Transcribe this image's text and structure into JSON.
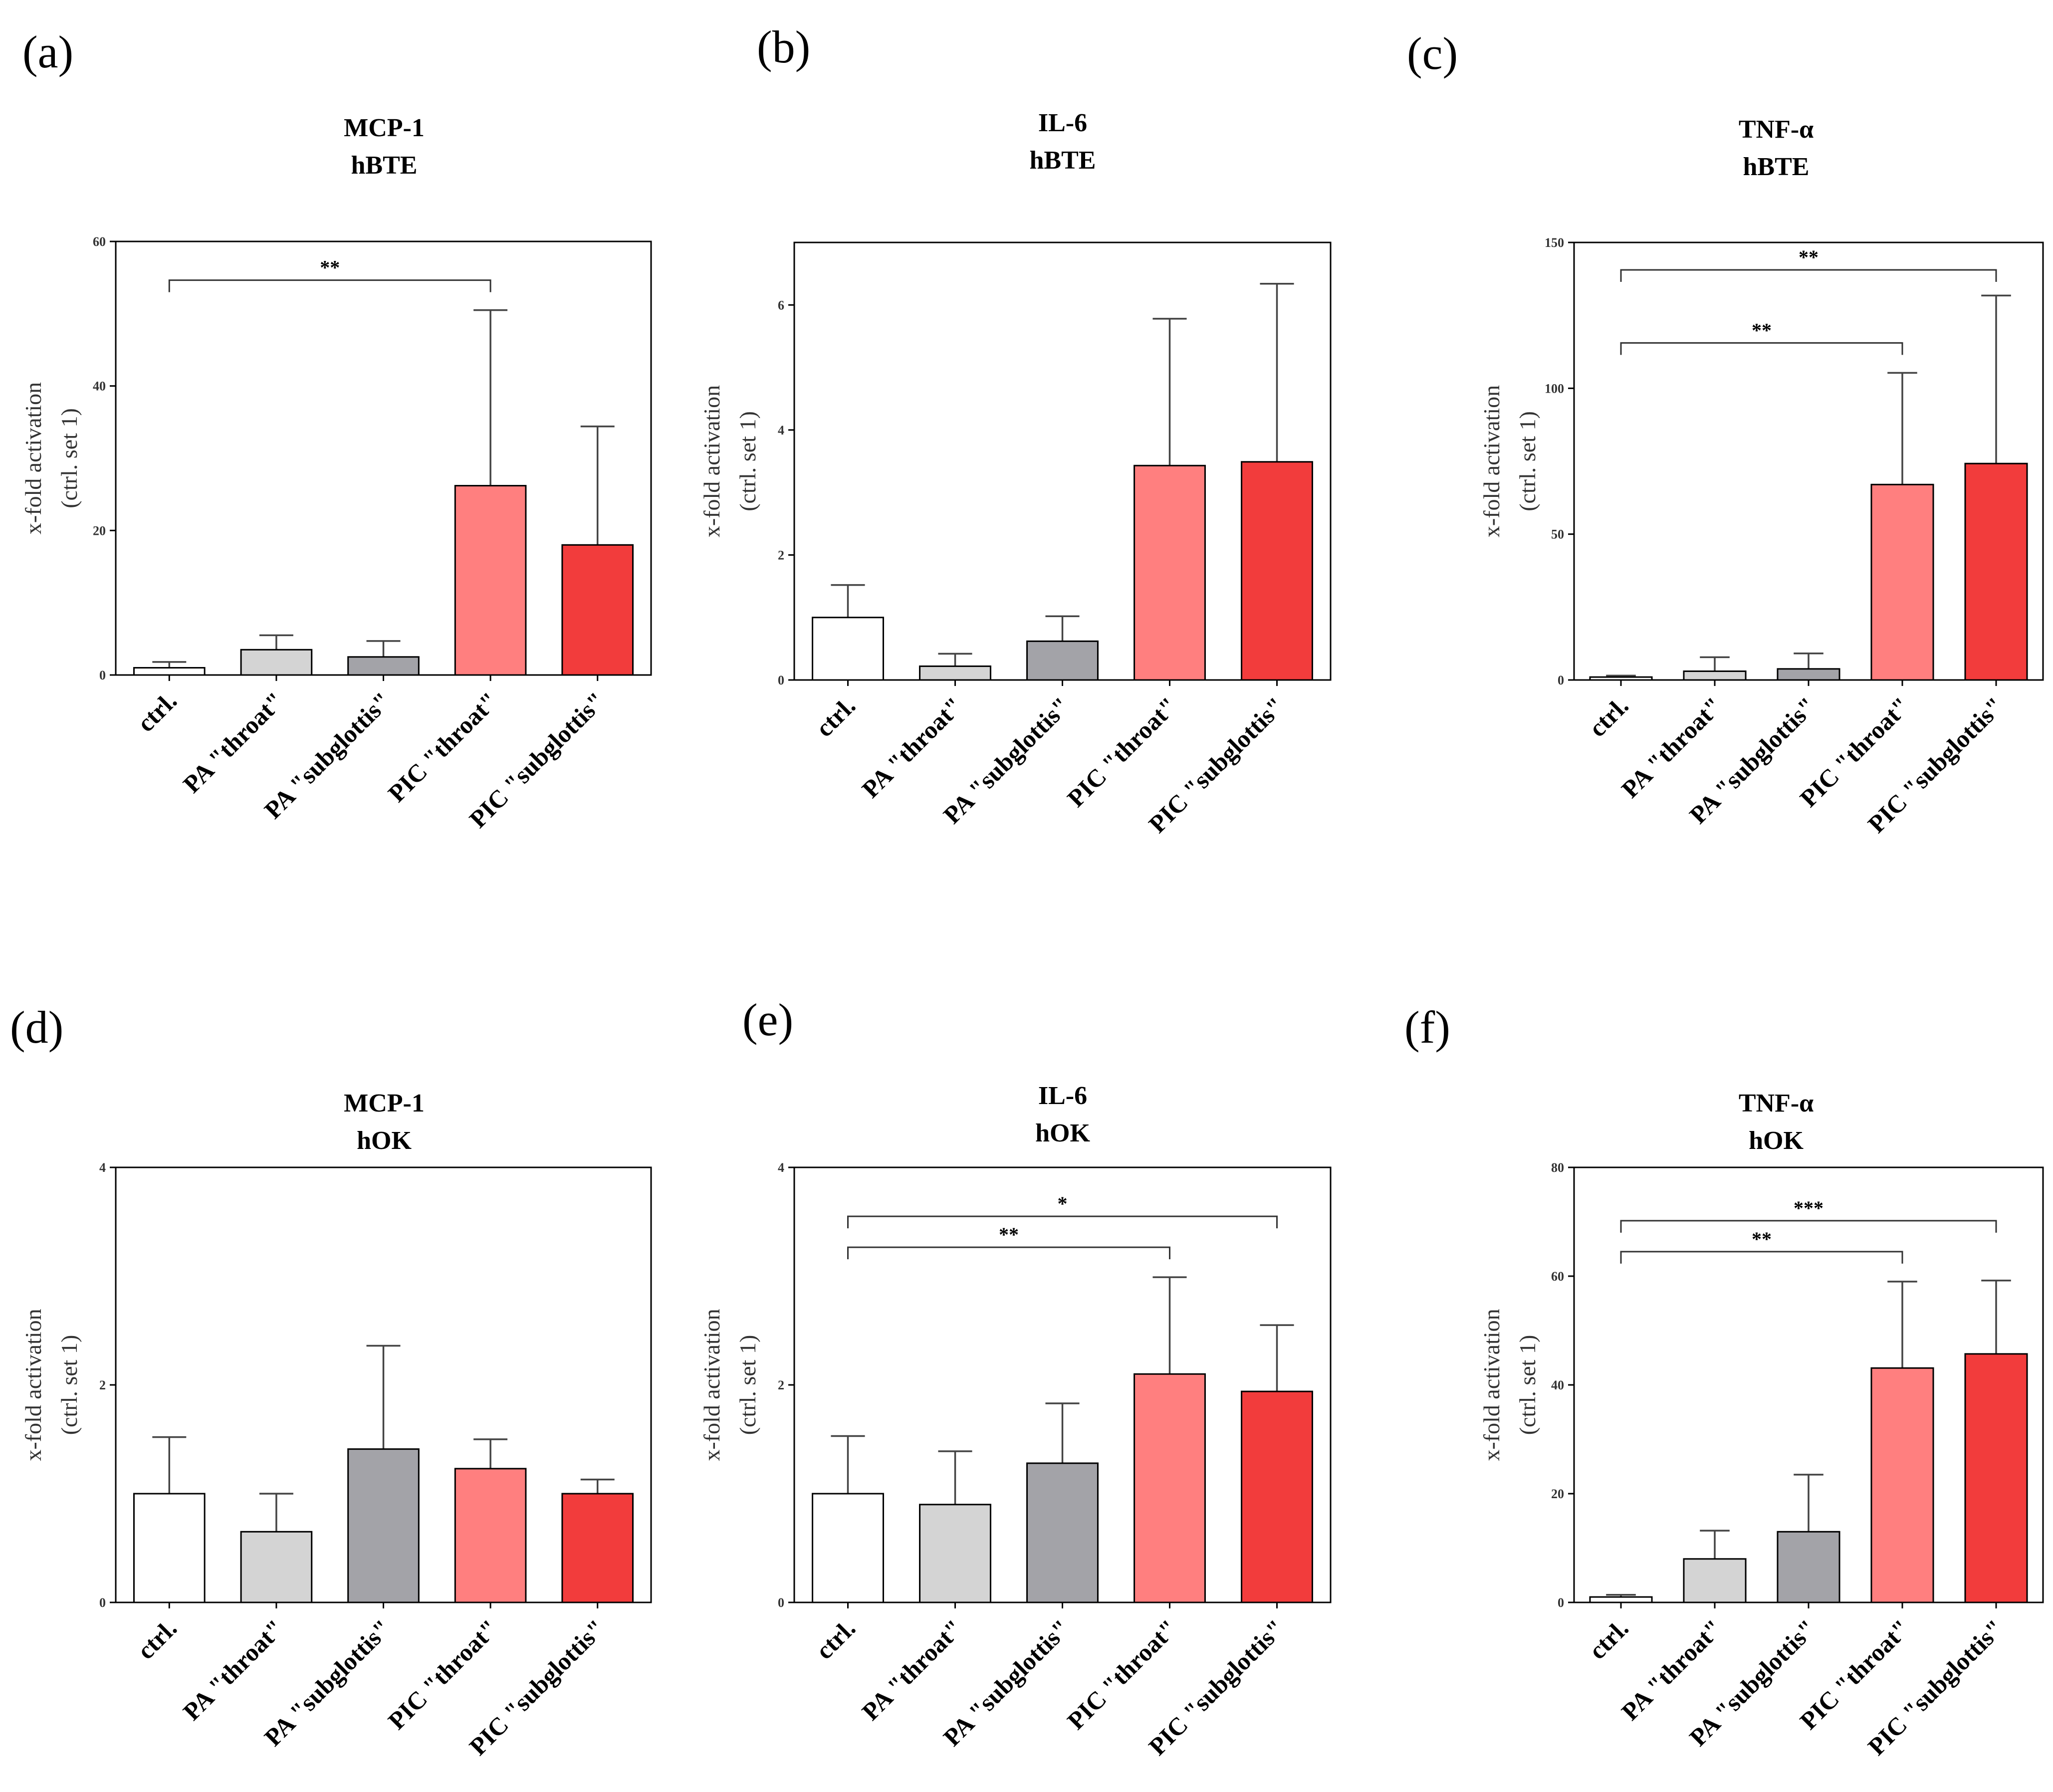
{
  "figure": {
    "categories": [
      "ctrl.",
      "PA \"throat\"",
      "PA \"subglottis\"",
      "PIC \"throat\"",
      "PIC \"subglottis\""
    ],
    "bar_colors": [
      "#ffffff",
      "#d4d4d4",
      "#a3a3a8",
      "#ff7f7f",
      "#f23c3c"
    ],
    "ylabel_line1": "x-fold activation",
    "ylabel_line2": "(ctrl. set 1)"
  },
  "chart_data": [
    {
      "panel": "(a)",
      "type": "bar",
      "title": "MCP-1",
      "subtitle": "hBTE",
      "ylabel": "x-fold activation (ctrl. set 1)",
      "categories": [
        "ctrl.",
        "PA \"throat\"",
        "PA \"subglottis\"",
        "PIC \"throat\"",
        "PIC \"subglottis\""
      ],
      "values": [
        1.0,
        3.5,
        2.5,
        26.2,
        18.0
      ],
      "errors": [
        0.8,
        2.0,
        2.2,
        24.3,
        16.4
      ],
      "ylim": [
        0,
        60
      ],
      "yticks": [
        0,
        20,
        40,
        60
      ],
      "significance": [
        {
          "from": 0,
          "to": 3,
          "label": "**"
        }
      ]
    },
    {
      "panel": "(b)",
      "type": "bar",
      "title": "IL-6",
      "subtitle": "hBTE",
      "ylabel": "x-fold activation (ctrl. set 1)",
      "categories": [
        "ctrl.",
        "PA \"throat\"",
        "PA \"subglottis\"",
        "PIC \"throat\"",
        "PIC \"subglottis\""
      ],
      "values": [
        1.0,
        0.22,
        0.62,
        3.43,
        3.49
      ],
      "errors": [
        0.52,
        0.2,
        0.4,
        2.35,
        2.85
      ],
      "ylim": [
        0,
        7
      ],
      "yticks": [
        0,
        2,
        4,
        6
      ],
      "significance": []
    },
    {
      "panel": "(c)",
      "type": "bar",
      "title": "TNF-α",
      "subtitle": "hBTE",
      "ylabel": "x-fold activation (ctrl. set 1)",
      "categories": [
        "ctrl.",
        "PA \"throat\"",
        "PA \"subglottis\"",
        "PIC \"throat\"",
        "PIC \"subglottis\""
      ],
      "values": [
        1.0,
        3.0,
        3.8,
        67.0,
        74.2
      ],
      "errors": [
        0.5,
        4.8,
        5.3,
        38.3,
        57.6
      ],
      "ylim": [
        0,
        150
      ],
      "yticks": [
        0,
        50,
        100,
        150
      ],
      "significance": [
        {
          "from": 0,
          "to": 3,
          "label": "**"
        },
        {
          "from": 0,
          "to": 4,
          "label": "**"
        }
      ]
    },
    {
      "panel": "(d)",
      "type": "bar",
      "title": "MCP-1",
      "subtitle": "hOK",
      "ylabel": "x-fold activation (ctrl. set 1)",
      "categories": [
        "ctrl.",
        "PA \"throat\"",
        "PA \"subglottis\"",
        "PIC \"throat\"",
        "PIC \"subglottis\""
      ],
      "values": [
        1.0,
        0.65,
        1.41,
        1.23,
        1.0
      ],
      "errors": [
        0.52,
        0.35,
        0.95,
        0.27,
        0.13
      ],
      "ylim": [
        0,
        4
      ],
      "yticks": [
        0,
        2,
        4
      ],
      "significance": []
    },
    {
      "panel": "(e)",
      "type": "bar",
      "title": "IL-6",
      "subtitle": "hOK",
      "ylabel": "x-fold activation (ctrl. set 1)",
      "categories": [
        "ctrl.",
        "PA \"throat\"",
        "PA \"subglottis\"",
        "PIC \"throat\"",
        "PIC \"subglottis\""
      ],
      "values": [
        1.0,
        0.9,
        1.28,
        2.1,
        1.94
      ],
      "errors": [
        0.53,
        0.49,
        0.55,
        0.89,
        0.61
      ],
      "ylim": [
        0,
        4
      ],
      "yticks": [
        0,
        2,
        4
      ],
      "significance": [
        {
          "from": 0,
          "to": 3,
          "label": "**"
        },
        {
          "from": 0,
          "to": 4,
          "label": "*"
        }
      ]
    },
    {
      "panel": "(f)",
      "type": "bar",
      "title": "TNF-α",
      "subtitle": "hOK",
      "ylabel": "x-fold activation (ctrl. set 1)",
      "categories": [
        "ctrl.",
        "PA \"throat\"",
        "PA \"subglottis\"",
        "PIC \"throat\"",
        "PIC \"subglottis\""
      ],
      "values": [
        1.0,
        8.0,
        13.0,
        43.1,
        45.7
      ],
      "errors": [
        0.4,
        5.2,
        10.5,
        15.9,
        13.5
      ],
      "ylim": [
        0,
        80
      ],
      "yticks": [
        0,
        20,
        40,
        60,
        80
      ],
      "significance": [
        {
          "from": 0,
          "to": 3,
          "label": "**"
        },
        {
          "from": 0,
          "to": 4,
          "label": "***"
        }
      ]
    }
  ]
}
